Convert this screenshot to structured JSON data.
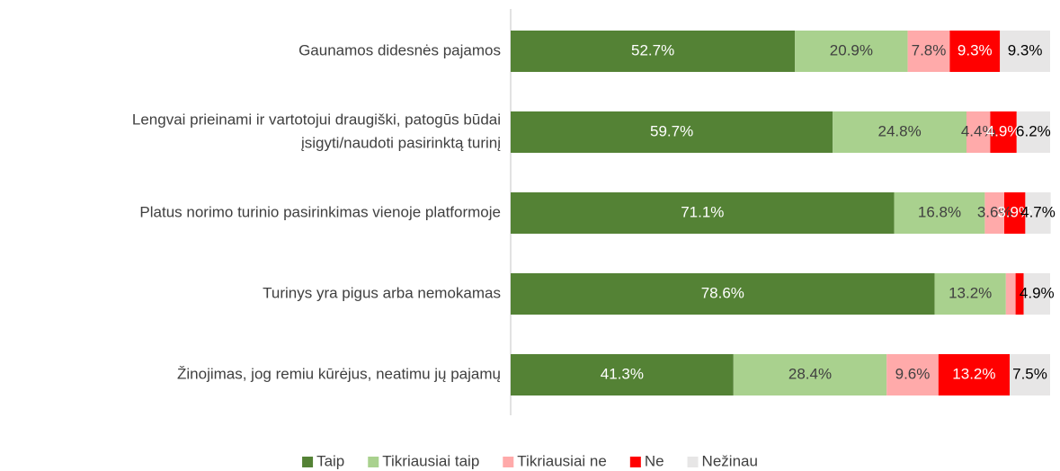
{
  "chart_data": {
    "type": "stacked_barh",
    "categories": [
      [
        "Gaunamos didesnės pajamos"
      ],
      [
        "Lengvai prieinami ir vartotojui draugiški, patogūs būdai",
        "įsigyti/naudoti pasirinktą turinį"
      ],
      [
        "Platus norimo turinio pasirinkimas vienoje platformoje"
      ],
      [
        "Turinys yra pigus arba nemokamas"
      ],
      [
        "Žinojimas, jog remiu kūrėjus, neatimu jų pajamų"
      ]
    ],
    "xlim": [
      0,
      100
    ],
    "legend": "bottom",
    "series": [
      {
        "name": "Taip",
        "color": "#548235",
        "label_color": "#ffffff",
        "values": [
          52.7,
          59.7,
          71.1,
          78.6,
          41.3
        ],
        "value_labels": [
          "52.7%",
          "59.7%",
          "71.1%",
          "78.6%",
          "41.3%"
        ]
      },
      {
        "name": "Tikriausiai taip",
        "color": "#a9d18e",
        "label_color": "#404040",
        "values": [
          20.9,
          24.8,
          16.8,
          13.2,
          28.4
        ],
        "value_labels": [
          "20.9%",
          "24.8%",
          "16.8%",
          "13.2%",
          "28.4%"
        ]
      },
      {
        "name": "Tikriausiai ne",
        "color": "#ffaaaa",
        "label_color": "#404040",
        "values": [
          7.8,
          4.4,
          3.6,
          1.8,
          9.6
        ],
        "value_labels": [
          "7.8%",
          "4.4%",
          "3.6%",
          null,
          "9.6%"
        ]
      },
      {
        "name": "Ne",
        "color": "#ff0000",
        "label_color": "#ffffff",
        "values": [
          9.3,
          4.9,
          3.9,
          1.5,
          13.2
        ],
        "value_labels": [
          "9.3%",
          "4.9%",
          "3.9%",
          null,
          "13.2%"
        ]
      },
      {
        "name": "Nežinau",
        "color": "#e7e6e6",
        "label_color": "#000000",
        "values": [
          9.3,
          6.2,
          4.7,
          4.9,
          7.5
        ],
        "value_labels": [
          "9.3%",
          "6.2%",
          "4.7%",
          "4.9%",
          "7.5%"
        ]
      }
    ]
  }
}
